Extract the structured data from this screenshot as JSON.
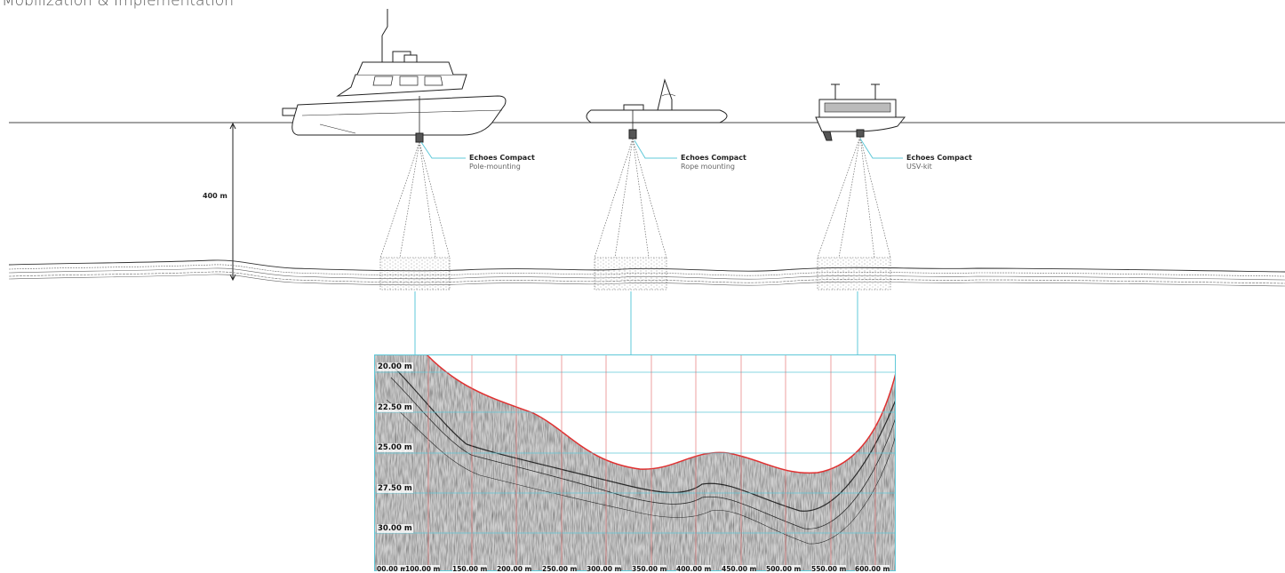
{
  "title": "Mobilization & Implementation",
  "depth_label": "400 m",
  "callouts": [
    {
      "name": "Echoes Compact",
      "mounting": "Pole-mounting"
    },
    {
      "name": "Echoes Compact",
      "mounting": "Rope mounting"
    },
    {
      "name": "Echoes Compact",
      "mounting": "USV-kit"
    }
  ],
  "colors": {
    "seabed_line": "#e03030",
    "grid_h": "#5fc8d8",
    "grid_v": "#e06060",
    "connector": "#5fc8d8"
  },
  "profile": {
    "y_ticks": [
      "20.00 m",
      "22.50 m",
      "25.00 m",
      "27.50 m",
      "30.00 m"
    ],
    "x_ticks": [
      "00.00 m",
      "100.00 m",
      "150.00 m",
      "200.00 m",
      "250.00 m",
      "300.00 m",
      "350.00 m",
      "400.00 m",
      "450.00 m",
      "500.00 m",
      "550.00 m",
      "600.00 m"
    ]
  }
}
